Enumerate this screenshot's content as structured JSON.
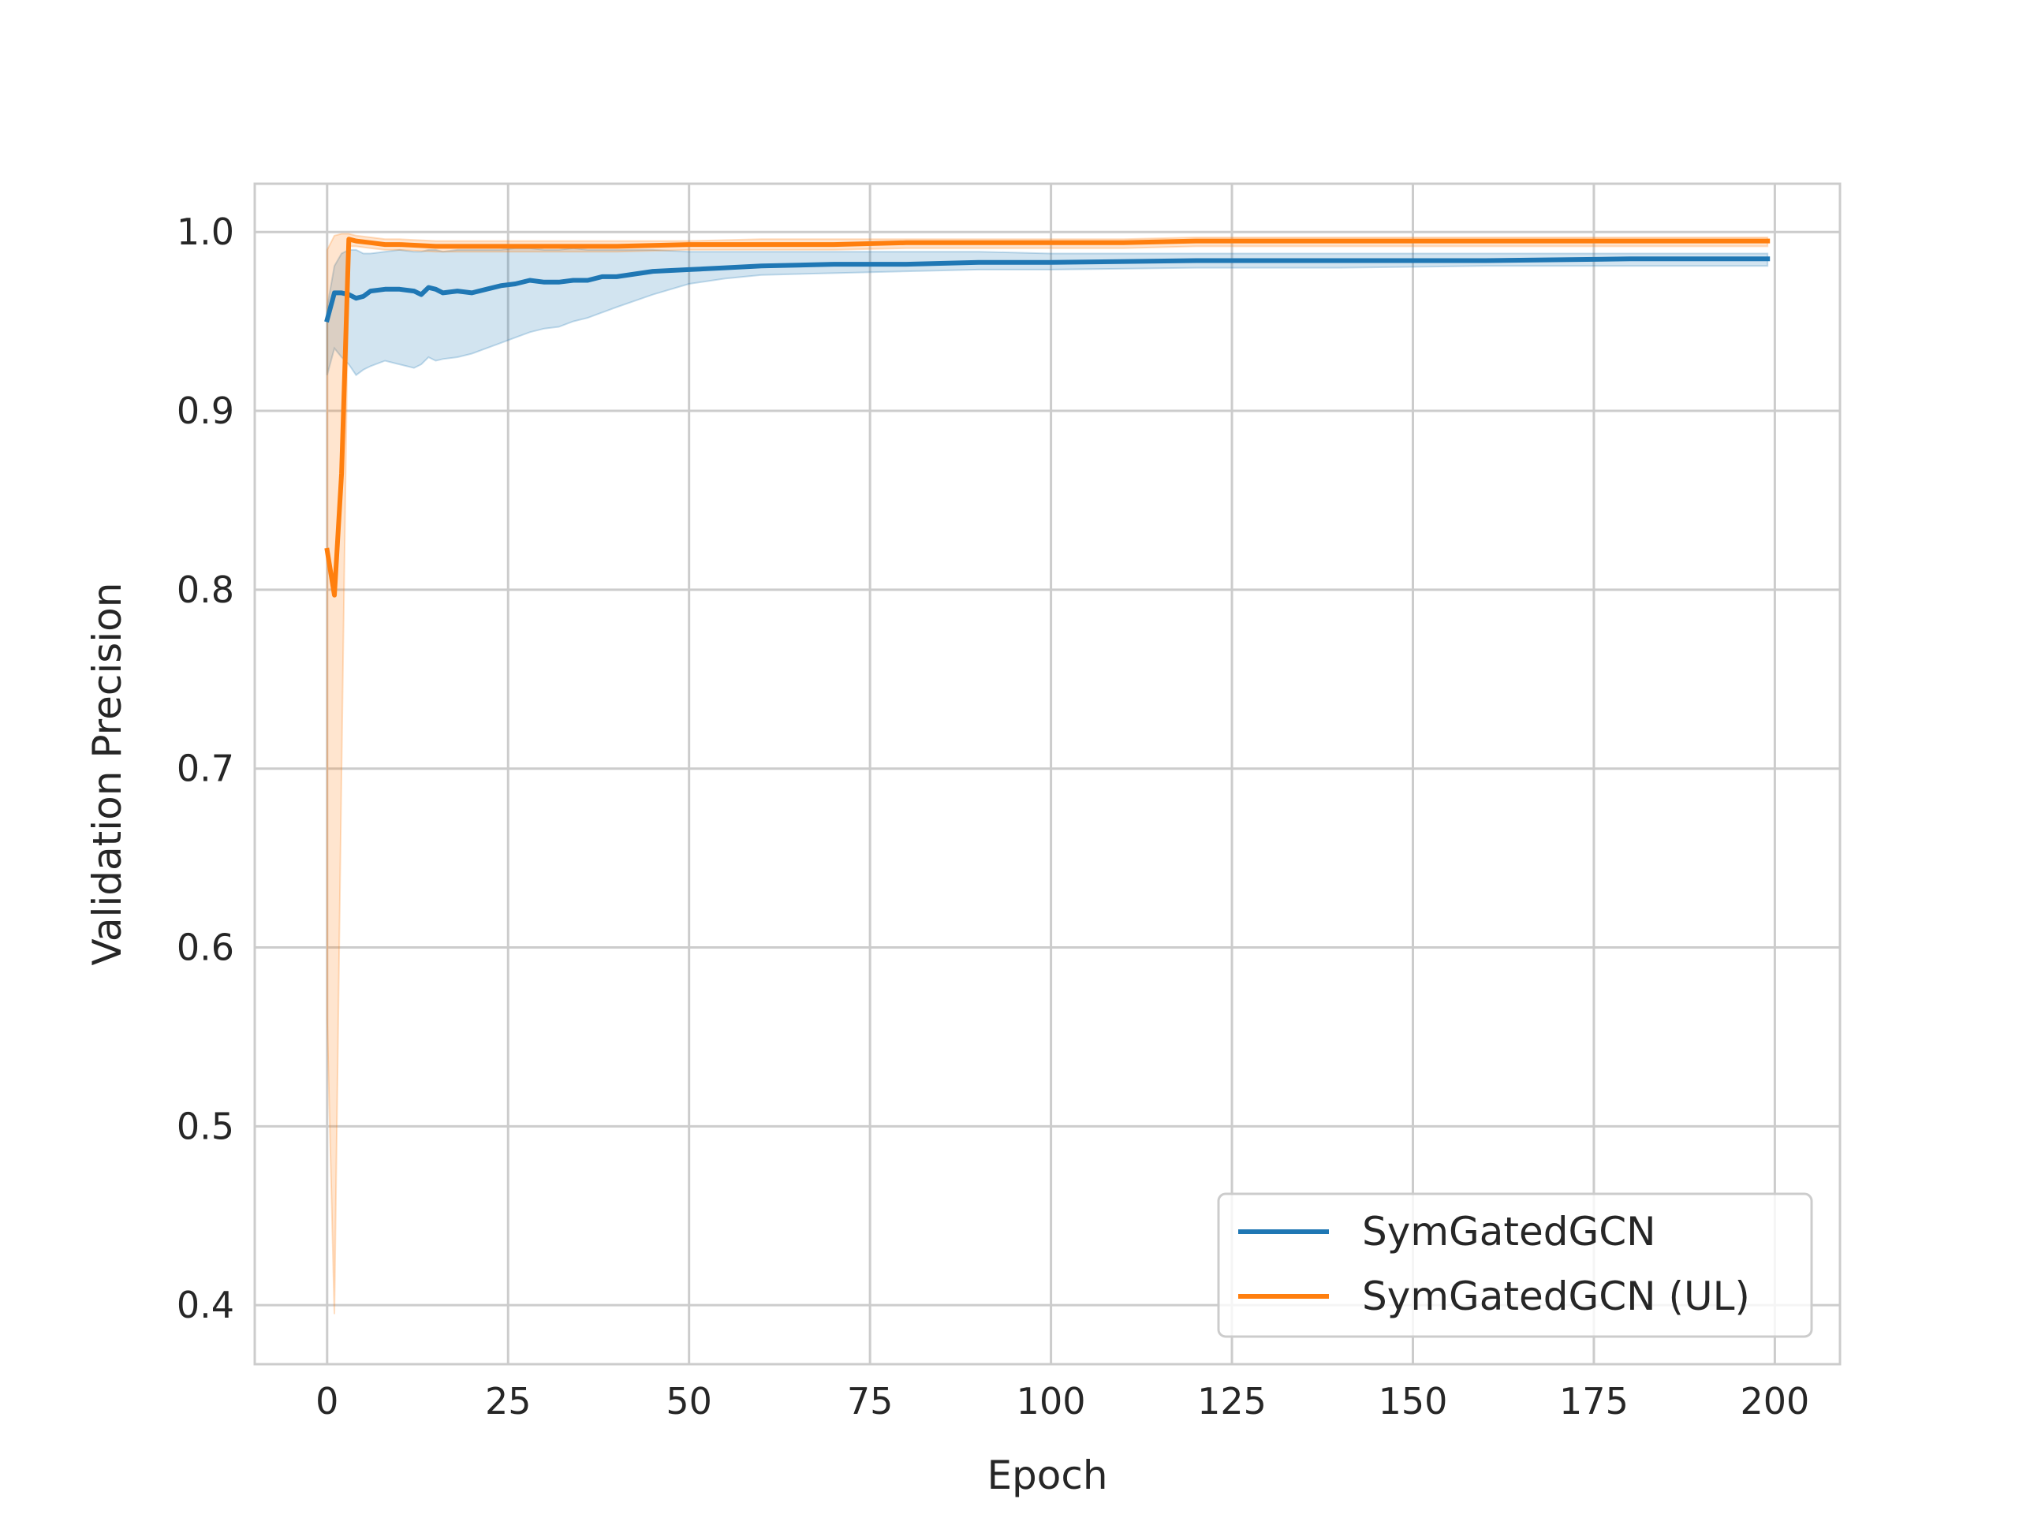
{
  "chart_data": {
    "type": "line",
    "title": "",
    "xlabel": "Epoch",
    "ylabel": "Validation Precision",
    "xlim": [
      -10,
      209
    ],
    "ylim": [
      0.367,
      1.027
    ],
    "xticks": [
      0,
      25,
      50,
      75,
      100,
      125,
      150,
      175,
      200
    ],
    "xtick_labels": [
      "0",
      "25",
      "50",
      "75",
      "100",
      "125",
      "150",
      "175",
      "200"
    ],
    "yticks": [
      0.4,
      0.5,
      0.6,
      0.7,
      0.8,
      0.9,
      1.0
    ],
    "ytick_labels": [
      "0.4",
      "0.5",
      "0.6",
      "0.7",
      "0.8",
      "0.9",
      "1.0"
    ],
    "grid": true,
    "legend_position": "lower-right",
    "series": [
      {
        "name": "SymGatedGCN",
        "color": "#1f77b4",
        "x": [
          0,
          1,
          2,
          3,
          4,
          5,
          6,
          8,
          10,
          12,
          13,
          14,
          15,
          16,
          18,
          20,
          22,
          24,
          26,
          28,
          30,
          32,
          34,
          36,
          38,
          40,
          45,
          50,
          55,
          60,
          70,
          80,
          90,
          100,
          120,
          140,
          160,
          180,
          199
        ],
        "values": [
          0.951,
          0.966,
          0.966,
          0.965,
          0.963,
          0.964,
          0.967,
          0.968,
          0.968,
          0.967,
          0.965,
          0.969,
          0.968,
          0.966,
          0.967,
          0.966,
          0.968,
          0.97,
          0.971,
          0.973,
          0.972,
          0.972,
          0.973,
          0.973,
          0.975,
          0.975,
          0.978,
          0.979,
          0.98,
          0.981,
          0.982,
          0.982,
          0.983,
          0.983,
          0.984,
          0.984,
          0.984,
          0.985,
          0.985
        ],
        "upper": [
          0.958,
          0.981,
          0.988,
          0.99,
          0.99,
          0.988,
          0.988,
          0.989,
          0.99,
          0.989,
          0.989,
          0.99,
          0.99,
          0.989,
          0.99,
          0.99,
          0.99,
          0.99,
          0.991,
          0.991,
          0.99,
          0.99,
          0.991,
          0.99,
          0.99,
          0.99,
          0.99,
          0.989,
          0.989,
          0.989,
          0.989,
          0.989,
          0.989,
          0.988,
          0.988,
          0.988,
          0.988,
          0.988,
          0.988
        ],
        "lower": [
          0.92,
          0.935,
          0.93,
          0.926,
          0.92,
          0.923,
          0.925,
          0.928,
          0.926,
          0.924,
          0.926,
          0.93,
          0.928,
          0.929,
          0.93,
          0.932,
          0.935,
          0.938,
          0.941,
          0.944,
          0.946,
          0.947,
          0.95,
          0.952,
          0.955,
          0.958,
          0.965,
          0.971,
          0.974,
          0.976,
          0.977,
          0.978,
          0.979,
          0.979,
          0.98,
          0.98,
          0.981,
          0.981,
          0.981
        ]
      },
      {
        "name": "SymGatedGCN (UL)",
        "color": "#ff7f0e",
        "x": [
          0,
          1,
          2,
          3,
          4,
          6,
          8,
          10,
          15,
          20,
          30,
          40,
          50,
          60,
          70,
          80,
          90,
          100,
          110,
          120,
          130,
          140,
          150,
          160,
          170,
          180,
          190,
          199
        ],
        "values": [
          0.822,
          0.797,
          0.865,
          0.996,
          0.995,
          0.994,
          0.993,
          0.993,
          0.992,
          0.992,
          0.992,
          0.992,
          0.993,
          0.993,
          0.993,
          0.994,
          0.994,
          0.994,
          0.994,
          0.995,
          0.995,
          0.995,
          0.995,
          0.995,
          0.995,
          0.995,
          0.995,
          0.995
        ],
        "upper": [
          0.99,
          0.998,
          0.999,
          0.999,
          0.998,
          0.997,
          0.996,
          0.996,
          0.995,
          0.995,
          0.995,
          0.995,
          0.995,
          0.996,
          0.996,
          0.996,
          0.996,
          0.996,
          0.996,
          0.997,
          0.997,
          0.997,
          0.997,
          0.997,
          0.997,
          0.997,
          0.997,
          0.997
        ],
        "lower": [
          0.56,
          0.395,
          0.7,
          0.992,
          0.992,
          0.991,
          0.99,
          0.99,
          0.989,
          0.989,
          0.989,
          0.989,
          0.99,
          0.99,
          0.99,
          0.991,
          0.991,
          0.991,
          0.991,
          0.992,
          0.992,
          0.992,
          0.992,
          0.992,
          0.992,
          0.992,
          0.992,
          0.992
        ]
      }
    ]
  }
}
